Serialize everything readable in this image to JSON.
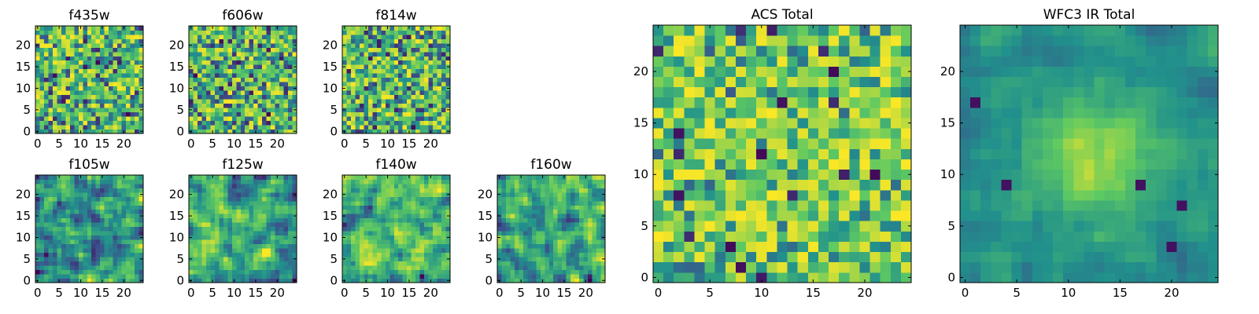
{
  "figure": {
    "colormap": "viridis",
    "colors": {
      "axes": "#000000",
      "background": "#ffffff",
      "viridis": [
        "#440154",
        "#3b528b",
        "#21918c",
        "#5ec962",
        "#fde725"
      ]
    }
  },
  "chart_data": [
    {
      "type": "heatmap",
      "title": "f435w",
      "grid": 25,
      "xticks": [
        "0",
        "5",
        "10",
        "15",
        "20"
      ],
      "yticks": [
        "0",
        "5",
        "10",
        "15",
        "20"
      ],
      "xlim": [
        0,
        25
      ],
      "ylim": [
        0,
        25
      ],
      "pattern": "noise",
      "seed": 11
    },
    {
      "type": "heatmap",
      "title": "f606w",
      "grid": 25,
      "xticks": [
        "0",
        "5",
        "10",
        "15",
        "20"
      ],
      "yticks": [
        "0",
        "5",
        "10",
        "15",
        "20"
      ],
      "xlim": [
        0,
        25
      ],
      "ylim": [
        0,
        25
      ],
      "pattern": "noise",
      "seed": 23
    },
    {
      "type": "heatmap",
      "title": "f814w",
      "grid": 25,
      "xticks": [
        "0",
        "5",
        "10",
        "15",
        "20"
      ],
      "yticks": [
        "0",
        "5",
        "10",
        "15",
        "20"
      ],
      "xlim": [
        0,
        25
      ],
      "ylim": [
        0,
        25
      ],
      "pattern": "noise",
      "seed": 37
    },
    {
      "type": "heatmap",
      "title": "f105w",
      "grid": 25,
      "xticks": [
        "0",
        "5",
        "10",
        "15",
        "20"
      ],
      "yticks": [
        "0",
        "5",
        "10",
        "15",
        "20"
      ],
      "xlim": [
        0,
        25
      ],
      "ylim": [
        0,
        25
      ],
      "pattern": "smooth",
      "seed": 41
    },
    {
      "type": "heatmap",
      "title": "f125w",
      "grid": 25,
      "xticks": [
        "0",
        "5",
        "10",
        "15",
        "20"
      ],
      "yticks": [
        "0",
        "5",
        "10",
        "15",
        "20"
      ],
      "xlim": [
        0,
        25
      ],
      "ylim": [
        0,
        25
      ],
      "pattern": "smooth",
      "seed": 53
    },
    {
      "type": "heatmap",
      "title": "f140w",
      "grid": 25,
      "xticks": [
        "0",
        "5",
        "10",
        "15",
        "20"
      ],
      "yticks": [
        "0",
        "5",
        "10",
        "15",
        "20"
      ],
      "xlim": [
        0,
        25
      ],
      "ylim": [
        0,
        25
      ],
      "pattern": "smooth-bright",
      "seed": 67
    },
    {
      "type": "heatmap",
      "title": "f160w",
      "grid": 25,
      "xticks": [
        "0",
        "5",
        "10",
        "15",
        "20"
      ],
      "yticks": [
        "0",
        "5",
        "10",
        "15",
        "20"
      ],
      "xlim": [
        0,
        25
      ],
      "ylim": [
        0,
        25
      ],
      "pattern": "smooth",
      "seed": 79
    },
    {
      "type": "heatmap",
      "title": "ACS Total",
      "grid": 25,
      "xticks": [
        "0",
        "5",
        "10",
        "15",
        "20"
      ],
      "yticks": [
        "0",
        "5",
        "10",
        "15",
        "20"
      ],
      "xlim": [
        0,
        25
      ],
      "ylim": [
        0,
        25
      ],
      "pattern": "noise-bright",
      "seed": 97
    },
    {
      "type": "heatmap",
      "title": "WFC3 IR Total",
      "grid": 25,
      "xticks": [
        "0",
        "5",
        "10",
        "15",
        "20"
      ],
      "yticks": [
        "0",
        "5",
        "10",
        "15",
        "20"
      ],
      "xlim": [
        0,
        25
      ],
      "ylim": [
        0,
        25
      ],
      "pattern": "blob",
      "seed": 113
    }
  ]
}
